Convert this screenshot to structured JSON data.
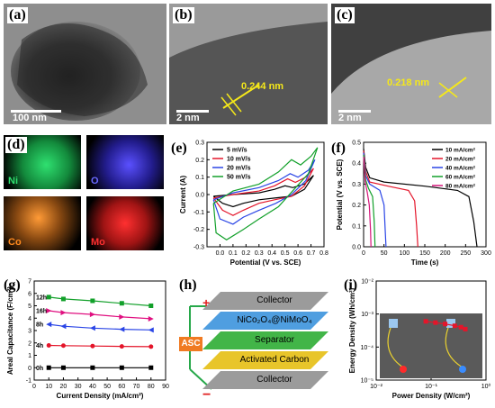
{
  "figure": {
    "panel_labels": [
      "(a)",
      "(b)",
      "(c)",
      "(d)",
      "(e)",
      "(f)",
      "(g)",
      "(h)",
      "(i)"
    ],
    "tem": {
      "a_scale": "100 nm",
      "b_scale": "2 nm",
      "b_spacing": "0.244 nm",
      "c_scale": "2 nm",
      "c_spacing": "0.218 nm"
    },
    "mapping": [
      "Ni",
      "O",
      "Co",
      "Mo"
    ],
    "colors": {
      "ni": "#22c05a",
      "o": "#3c3cff",
      "co": "#ff8a1e",
      "mo": "#ff2020"
    },
    "device": {
      "asc": "ASC",
      "plus": "+",
      "minus": "−",
      "layers": [
        "Collector",
        "NiCo₂O₄@NiMoO₄",
        "Separator",
        "Activated Carbon",
        "Collector"
      ]
    }
  },
  "chart_data": [
    {
      "panel": "(e)",
      "type": "line",
      "xlabel": "Potential (V vs. SCE)",
      "ylabel": "Current (A)",
      "xlim": [
        -0.1,
        0.8
      ],
      "ylim": [
        -0.3,
        0.3
      ],
      "xticks": [
        "0.0",
        "0.1",
        "0.2",
        "0.3",
        "0.4",
        "0.5",
        "0.6",
        "0.7",
        "0.8"
      ],
      "yticks": [
        "-0.3",
        "-0.2",
        "-0.1",
        "0.0",
        "0.1",
        "0.2",
        "0.3"
      ],
      "legend_position": "top-left",
      "series": [
        {
          "name": "5 mV/s",
          "color": "#000000",
          "upper": [
            [
              -0.05,
              -0.01
            ],
            [
              0.1,
              0.0
            ],
            [
              0.3,
              0.01
            ],
            [
              0.42,
              0.03
            ],
            [
              0.5,
              0.05
            ],
            [
              0.56,
              0.04
            ],
            [
              0.65,
              0.06
            ],
            [
              0.72,
              0.11
            ]
          ],
          "lower": [
            [
              0.72,
              0.11
            ],
            [
              0.65,
              0.03
            ],
            [
              0.55,
              -0.01
            ],
            [
              0.42,
              -0.02
            ],
            [
              0.3,
              -0.03
            ],
            [
              0.18,
              -0.05
            ],
            [
              0.1,
              -0.07
            ],
            [
              0.02,
              -0.05
            ],
            [
              -0.05,
              -0.01
            ]
          ]
        },
        {
          "name": "10 mV/s",
          "color": "#e4152a",
          "upper": [
            [
              -0.05,
              -0.02
            ],
            [
              0.1,
              0.0
            ],
            [
              0.3,
              0.02
            ],
            [
              0.42,
              0.05
            ],
            [
              0.52,
              0.09
            ],
            [
              0.58,
              0.07
            ],
            [
              0.66,
              0.1
            ],
            [
              0.72,
              0.15
            ]
          ],
          "lower": [
            [
              0.72,
              0.15
            ],
            [
              0.65,
              0.05
            ],
            [
              0.55,
              -0.01
            ],
            [
              0.42,
              -0.03
            ],
            [
              0.3,
              -0.05
            ],
            [
              0.18,
              -0.09
            ],
            [
              0.1,
              -0.12
            ],
            [
              0.02,
              -0.09
            ],
            [
              -0.05,
              -0.02
            ]
          ]
        },
        {
          "name": "20 mV/s",
          "color": "#2a45e6",
          "upper": [
            [
              -0.05,
              -0.03
            ],
            [
              0.1,
              0.01
            ],
            [
              0.3,
              0.04
            ],
            [
              0.45,
              0.08
            ],
            [
              0.54,
              0.12
            ],
            [
              0.6,
              0.1
            ],
            [
              0.68,
              0.14
            ],
            [
              0.73,
              0.2
            ]
          ],
          "lower": [
            [
              0.73,
              0.2
            ],
            [
              0.66,
              0.08
            ],
            [
              0.55,
              0.0
            ],
            [
              0.43,
              -0.05
            ],
            [
              0.3,
              -0.09
            ],
            [
              0.18,
              -0.13
            ],
            [
              0.1,
              -0.17
            ],
            [
              0.0,
              -0.14
            ],
            [
              -0.05,
              -0.03
            ]
          ]
        },
        {
          "name": "50 mV/s",
          "color": "#12a02a",
          "upper": [
            [
              -0.05,
              -0.05
            ],
            [
              0.1,
              0.02
            ],
            [
              0.3,
              0.06
            ],
            [
              0.45,
              0.13
            ],
            [
              0.55,
              0.2
            ],
            [
              0.62,
              0.17
            ],
            [
              0.7,
              0.22
            ],
            [
              0.75,
              0.27
            ]
          ],
          "lower": [
            [
              0.75,
              0.27
            ],
            [
              0.68,
              0.12
            ],
            [
              0.57,
              0.03
            ],
            [
              0.45,
              -0.07
            ],
            [
              0.3,
              -0.14
            ],
            [
              0.18,
              -0.2
            ],
            [
              0.05,
              -0.26
            ],
            [
              -0.03,
              -0.22
            ],
            [
              -0.05,
              -0.05
            ]
          ]
        }
      ]
    },
    {
      "panel": "(f)",
      "type": "line",
      "xlabel": "Time (s)",
      "ylabel": "Potential (V vs. SCE)",
      "xlim": [
        0,
        300
      ],
      "ylim": [
        0,
        0.5
      ],
      "xticks": [
        "0",
        "50",
        "100",
        "150",
        "200",
        "250",
        "300"
      ],
      "yticks": [
        "0.0",
        "0.1",
        "0.2",
        "0.3",
        "0.4",
        "0.5"
      ],
      "legend_position": "top-right",
      "series": [
        {
          "name": "10 mA/cm²",
          "color": "#000000",
          "points": [
            [
              0,
              0.47
            ],
            [
              5,
              0.38
            ],
            [
              15,
              0.33
            ],
            [
              50,
              0.31
            ],
            [
              150,
              0.29
            ],
            [
              230,
              0.27
            ],
            [
              258,
              0.24
            ],
            [
              270,
              0.12
            ],
            [
              278,
              0.0
            ]
          ]
        },
        {
          "name": "20 mA/cm²",
          "color": "#e4152a",
          "points": [
            [
              0,
              0.46
            ],
            [
              5,
              0.36
            ],
            [
              15,
              0.31
            ],
            [
              60,
              0.29
            ],
            [
              110,
              0.27
            ],
            [
              125,
              0.22
            ],
            [
              130,
              0.1
            ],
            [
              133,
              0.0
            ]
          ]
        },
        {
          "name": "40 mA/cm²",
          "color": "#2a45e6",
          "points": [
            [
              0,
              0.45
            ],
            [
              5,
              0.34
            ],
            [
              15,
              0.3
            ],
            [
              40,
              0.27
            ],
            [
              50,
              0.2
            ],
            [
              53,
              0.08
            ],
            [
              55,
              0.0
            ]
          ]
        },
        {
          "name": "60 mA/cm²",
          "color": "#12a02a",
          "points": [
            [
              0,
              0.44
            ],
            [
              5,
              0.32
            ],
            [
              12,
              0.28
            ],
            [
              22,
              0.24
            ],
            [
              26,
              0.12
            ],
            [
              28,
              0.0
            ]
          ]
        },
        {
          "name": "80 mA/cm²",
          "color": "#d6157a",
          "points": [
            [
              0,
              0.43
            ],
            [
              4,
              0.31
            ],
            [
              9,
              0.26
            ],
            [
              14,
              0.2
            ],
            [
              17,
              0.08
            ],
            [
              18,
              0.0
            ]
          ]
        }
      ]
    },
    {
      "panel": "(g)",
      "type": "line",
      "xlabel": "Current Density (mA/cm²)",
      "ylabel": "Areal Capacitance (F/cm²)",
      "xlim": [
        0,
        90
      ],
      "ylim": [
        -1,
        7
      ],
      "xticks": [
        "0",
        "10",
        "20",
        "30",
        "40",
        "50",
        "60",
        "70",
        "80",
        "90"
      ],
      "yticks": [
        "-1",
        "0",
        "1",
        "2",
        "3",
        "4",
        "5",
        "6",
        "7"
      ],
      "categories": [
        10,
        20,
        40,
        60,
        80
      ],
      "series": [
        {
          "name": "0h",
          "color": "#000000",
          "marker": "square",
          "values": [
            0.0,
            0.0,
            0.0,
            0.0,
            0.0
          ]
        },
        {
          "name": "4h",
          "color": "#e4152a",
          "marker": "circle",
          "values": [
            1.8,
            1.78,
            1.75,
            1.72,
            1.7
          ]
        },
        {
          "name": "8h",
          "color": "#2a45e6",
          "marker": "triangle-left",
          "values": [
            3.5,
            3.35,
            3.2,
            3.1,
            3.05
          ]
        },
        {
          "name": "16h",
          "color": "#e01080",
          "marker": "triangle-right",
          "values": [
            4.6,
            4.45,
            4.3,
            4.1,
            3.95
          ]
        },
        {
          "name": "12h",
          "color": "#12a02a",
          "marker": "square",
          "values": [
            5.7,
            5.55,
            5.4,
            5.2,
            5.0
          ]
        }
      ]
    },
    {
      "panel": "(i)",
      "type": "scatter",
      "xlabel": "Power Density (W/cm²)",
      "ylabel": "Energy Density (Wh/cm²)",
      "xscale": "log",
      "yscale": "log",
      "xlim": [
        0.01,
        1
      ],
      "ylim": [
        1e-05,
        0.01
      ],
      "xticks": [
        "10⁻²",
        "10⁻¹",
        "10⁰"
      ],
      "yticks": [
        "10⁻⁵",
        "10⁻⁴",
        "10⁻³",
        "10⁻²"
      ],
      "series": [
        {
          "name": "ASC",
          "color": "#e4152a",
          "marker": "square",
          "points": [
            [
              0.08,
              0.0006
            ],
            [
              0.12,
              0.00055
            ],
            [
              0.18,
              0.0005
            ],
            [
              0.27,
              0.00044
            ],
            [
              0.35,
              0.0004
            ],
            [
              0.42,
              0.00035
            ]
          ]
        }
      ]
    }
  ]
}
